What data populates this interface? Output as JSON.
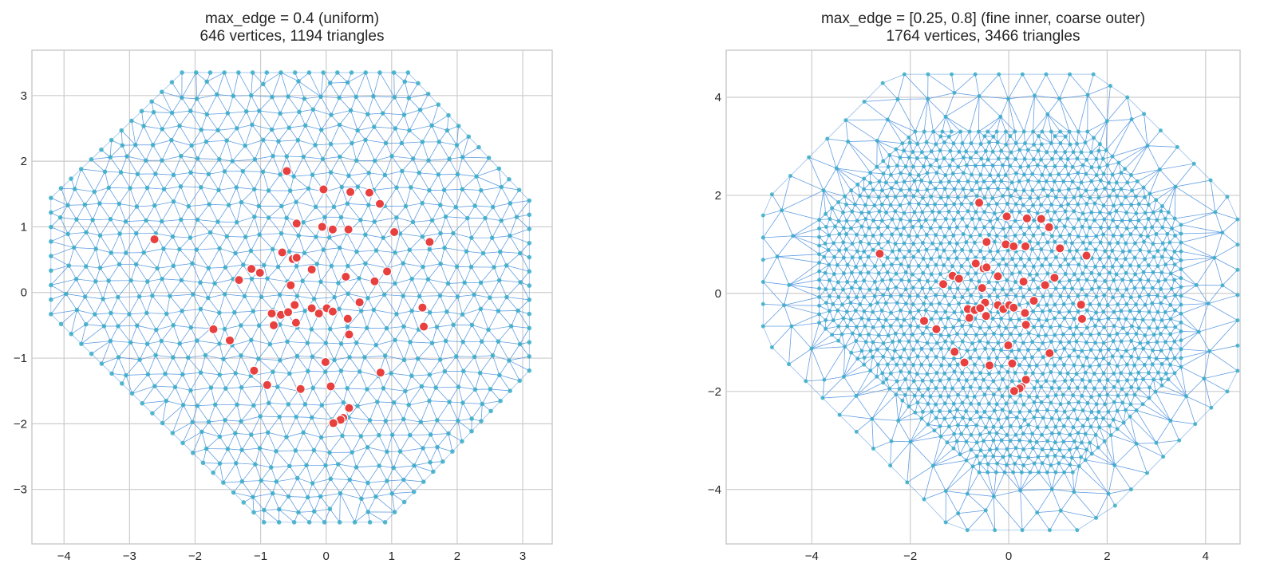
{
  "chart_data": [
    {
      "type": "scatter",
      "title": [
        "max_edge = 0.4 (uniform)",
        "646 vertices, 1194 triangles"
      ],
      "xlabel": "",
      "ylabel": "",
      "xlim": [
        -4.49,
        3.45
      ],
      "ylim": [
        -3.83,
        3.69
      ],
      "xticks": [
        -4,
        -3,
        -2,
        -1,
        0,
        1,
        2,
        3
      ],
      "xtick_labels": [
        "−4",
        "−3",
        "−2",
        "−1",
        "0",
        "1",
        "2",
        "3"
      ],
      "yticks": [
        -3,
        -2,
        -1,
        0,
        1,
        2,
        3
      ],
      "ytick_labels": [
        "−3",
        "−2",
        "−1",
        "0",
        "1",
        "2",
        "3"
      ],
      "grid": true,
      "domain_boundary": [
        [
          -2.2,
          3.35
        ],
        [
          1.25,
          3.35
        ],
        [
          3.1,
          1.4
        ],
        [
          3.1,
          -1.19
        ],
        [
          0.9,
          -3.5
        ],
        [
          -0.95,
          -3.5
        ],
        [
          -4.2,
          -0.33
        ],
        [
          -4.2,
          1.44
        ]
      ],
      "colors": {
        "mesh_edges": "#4a8fe0",
        "mesh_vertices": "#3aaec6",
        "points": "#e8403f"
      }
    },
    {
      "type": "scatter",
      "title": [
        "max_edge = [0.25, 0.8] (fine inner, coarse outer)",
        "1764 vertices, 3466 triangles"
      ],
      "xlabel": "",
      "ylabel": "",
      "xlim": [
        -5.74,
        4.7
      ],
      "ylim": [
        -5.11,
        4.96
      ],
      "xticks": [
        -4,
        -2,
        0,
        2,
        4
      ],
      "xtick_labels": [
        "−4",
        "−2",
        "0",
        "2",
        "4"
      ],
      "yticks": [
        -4,
        -2,
        0,
        2,
        4
      ],
      "ytick_labels": [
        "−4",
        "−2",
        "0",
        "2",
        "4"
      ],
      "grid": true,
      "domain_boundary": [
        [
          -2.12,
          4.47
        ],
        [
          1.72,
          4.47
        ],
        [
          2.41,
          4.0
        ],
        [
          4.44,
          1.97
        ],
        [
          4.65,
          1.51
        ],
        [
          4.65,
          -1.58
        ],
        [
          4.44,
          -2.0
        ],
        [
          2.16,
          -4.33
        ],
        [
          1.39,
          -4.83
        ],
        [
          -0.84,
          -4.83
        ],
        [
          -1.28,
          -4.67
        ],
        [
          -1.72,
          -4.2
        ],
        [
          -4.81,
          -1.1
        ],
        [
          -4.99,
          -0.67
        ],
        [
          -4.99,
          1.59
        ],
        [
          -4.81,
          2.02
        ],
        [
          -2.56,
          4.29
        ]
      ],
      "inner_region": [
        [
          -1.9,
          3.3
        ],
        [
          1.6,
          3.3
        ],
        [
          3.5,
          1.4
        ],
        [
          3.5,
          -1.5
        ],
        [
          1.3,
          -3.65
        ],
        [
          -0.6,
          -3.65
        ],
        [
          -3.85,
          -0.6
        ],
        [
          -3.85,
          1.5
        ]
      ],
      "colors": {
        "mesh_edges": "#4a8fe0",
        "mesh_vertices": "#3aaec6",
        "points": "#e8403f"
      }
    }
  ],
  "points": [
    [
      -0.6,
      1.85
    ],
    [
      -0.04,
      1.57
    ],
    [
      0.37,
      1.53
    ],
    [
      0.66,
      1.52
    ],
    [
      0.82,
      1.35
    ],
    [
      -0.45,
      1.05
    ],
    [
      -0.06,
      1.0
    ],
    [
      0.1,
      0.96
    ],
    [
      0.34,
      0.96
    ],
    [
      1.04,
      0.92
    ],
    [
      1.58,
      0.77
    ],
    [
      -2.62,
      0.81
    ],
    [
      -0.67,
      0.61
    ],
    [
      -0.51,
      0.51
    ],
    [
      -0.45,
      0.53
    ],
    [
      -1.14,
      0.36
    ],
    [
      -1.01,
      0.3
    ],
    [
      -1.33,
      0.19
    ],
    [
      -0.22,
      0.35
    ],
    [
      0.3,
      0.24
    ],
    [
      0.93,
      0.32
    ],
    [
      0.74,
      0.17
    ],
    [
      -0.54,
      0.11
    ],
    [
      0.51,
      -0.15
    ],
    [
      -0.48,
      -0.19
    ],
    [
      -0.83,
      -0.32
    ],
    [
      -0.69,
      -0.34
    ],
    [
      -0.58,
      -0.3
    ],
    [
      -0.22,
      -0.24
    ],
    [
      -0.11,
      -0.32
    ],
    [
      0.01,
      -0.24
    ],
    [
      0.1,
      -0.29
    ],
    [
      0.33,
      -0.4
    ],
    [
      -0.8,
      -0.5
    ],
    [
      -0.46,
      -0.46
    ],
    [
      1.47,
      -0.23
    ],
    [
      1.49,
      -0.52
    ],
    [
      0.35,
      -0.64
    ],
    [
      -1.72,
      -0.56
    ],
    [
      -1.47,
      -0.73
    ],
    [
      -0.01,
      -1.06
    ],
    [
      0.83,
      -1.22
    ],
    [
      -1.1,
      -1.19
    ],
    [
      -0.9,
      -1.41
    ],
    [
      -0.39,
      -1.47
    ],
    [
      0.07,
      -1.43
    ],
    [
      0.35,
      -1.76
    ],
    [
      0.26,
      -1.91
    ],
    [
      0.22,
      -1.94
    ],
    [
      0.11,
      -1.99
    ]
  ]
}
